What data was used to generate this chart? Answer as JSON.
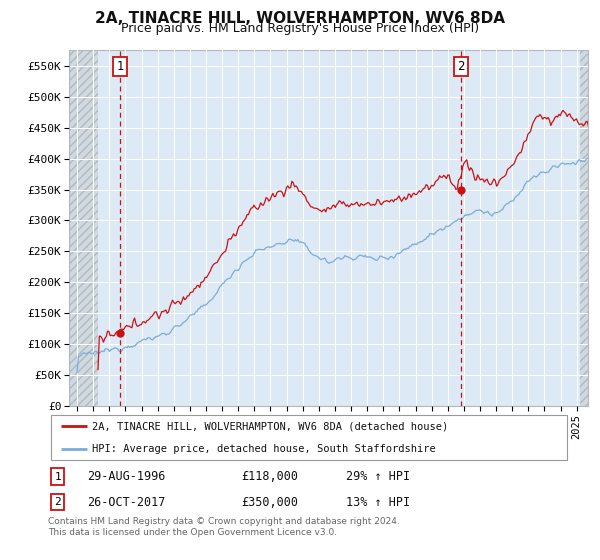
{
  "title": "2A, TINACRE HILL, WOLVERHAMPTON, WV6 8DA",
  "subtitle": "Price paid vs. HM Land Registry's House Price Index (HPI)",
  "ylim": [
    0,
    575000
  ],
  "yticks": [
    0,
    50000,
    100000,
    150000,
    200000,
    250000,
    300000,
    350000,
    400000,
    450000,
    500000,
    550000
  ],
  "ytick_labels": [
    "£0",
    "£50K",
    "£100K",
    "£150K",
    "£200K",
    "£250K",
    "£300K",
    "£350K",
    "£400K",
    "£450K",
    "£500K",
    "£550K"
  ],
  "xlim_start": 1993.5,
  "xlim_end": 2025.7,
  "xticks": [
    1994,
    1995,
    1996,
    1997,
    1998,
    1999,
    2000,
    2001,
    2002,
    2003,
    2004,
    2005,
    2006,
    2007,
    2008,
    2009,
    2010,
    2011,
    2012,
    2013,
    2014,
    2015,
    2016,
    2017,
    2018,
    2019,
    2020,
    2021,
    2022,
    2023,
    2024,
    2025
  ],
  "bg_color": "#ddeaf5",
  "grid_color": "#c8d8e8",
  "line_red_color": "#cc1111",
  "line_blue_color": "#7aacda",
  "sale1_year": 1996.66,
  "sale1_price": 118000,
  "sale2_year": 2017.82,
  "sale2_price": 350000,
  "legend_label_red": "2A, TINACRE HILL, WOLVERHAMPTON, WV6 8DA (detached house)",
  "legend_label_blue": "HPI: Average price, detached house, South Staffordshire",
  "annotation1_date": "29-AUG-1996",
  "annotation1_price": "£118,000",
  "annotation1_hpi": "29% ↑ HPI",
  "annotation2_date": "26-OCT-2017",
  "annotation2_price": "£350,000",
  "annotation2_hpi": "13% ↑ HPI",
  "footnote": "Contains HM Land Registry data © Crown copyright and database right 2024.\nThis data is licensed under the Open Government Licence v3.0."
}
